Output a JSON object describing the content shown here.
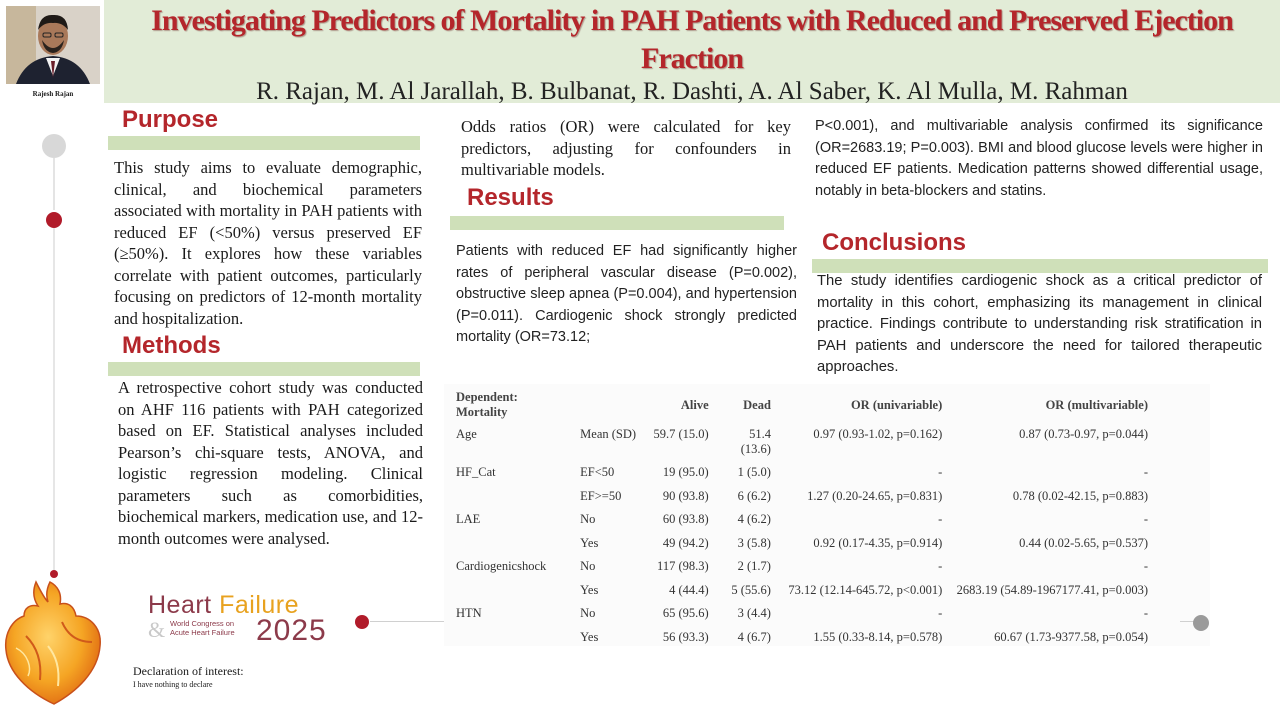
{
  "header": {
    "title": "Investigating Predictors of Mortality in PAH Patients with Reduced and Preserved Ejection Fraction",
    "authors": "R. Rajan, M. Al Jarallah, B. Bulbanat, R. Dashti, A. Al Saber, K. Al Mulla, M. Rahman",
    "photo_caption": "Rajesh Rajan"
  },
  "sections": {
    "purpose": {
      "heading": "Purpose",
      "text": "This study aims to evaluate demographic, clinical, and biochemical parameters associated with mortality in PAH patients with reduced EF (<50%) versus preserved EF (≥50%). It explores how these variables correlate with patient outcomes, particularly focusing on predictors of 12-month mortality and hospitalization."
    },
    "methods": {
      "heading": "Methods",
      "text": "A retrospective cohort study was conducted on AHF 116 patients with PAH categorized based on EF. Statistical analyses included Pearson’s chi-square tests, ANOVA, and logistic regression modeling. Clinical parameters such as comorbidities, biochemical markers, medication use, and 12-month outcomes were analysed.",
      "continued": "Odds ratios (OR) were calculated for key predictors, adjusting for confounders in multivariable models."
    },
    "results": {
      "heading": "Results",
      "text": "Patients with reduced EF had significantly higher rates of peripheral vascular disease (P=0.002), obstructive sleep apnea (P=0.004), and hypertension (P=0.011). Cardiogenic shock strongly predicted mortality (OR=73.12;",
      "continued": "P<0.001), and multivariable analysis confirmed its significance (OR=2683.19; P=0.003). BMI and blood glucose levels were higher in reduced EF patients. Medication patterns showed differential usage, notably in beta-blockers and statins."
    },
    "conclusions": {
      "heading": "Conclusions",
      "text": "The study identifies cardiogenic shock as a critical predictor of mortality in this cohort, emphasizing its management in clinical practice. Findings contribute to understanding risk stratification in PAH patients and underscore the need for tailored therapeutic approaches."
    }
  },
  "table": {
    "headers": {
      "dependent_line1": "Dependent:",
      "dependent_line2": "Mortality",
      "alive": "Alive",
      "dead": "Dead",
      "or_uni": "OR (univariable)",
      "or_multi": "OR (multivariable)"
    },
    "rows": [
      {
        "var": "Age",
        "level": "Mean (SD)",
        "alive": "59.7 (15.0)",
        "dead": "51.4 (13.6)",
        "or_uni": "0.97 (0.93-1.02, p=0.162)",
        "or_multi": "0.87 (0.73-0.97, p=0.044)"
      },
      {
        "var": "HF_Cat",
        "level": "EF<50",
        "alive": "19 (95.0)",
        "dead": "1 (5.0)",
        "or_uni": "-",
        "or_multi": "-"
      },
      {
        "var": "",
        "level": "EF>=50",
        "alive": "90 (93.8)",
        "dead": "6 (6.2)",
        "or_uni": "1.27 (0.20-24.65, p=0.831)",
        "or_multi": "0.78 (0.02-42.15, p=0.883)"
      },
      {
        "var": "LAE",
        "level": "No",
        "alive": "60 (93.8)",
        "dead": "4 (6.2)",
        "or_uni": "-",
        "or_multi": "-"
      },
      {
        "var": "",
        "level": "Yes",
        "alive": "49 (94.2)",
        "dead": "3 (5.8)",
        "or_uni": "0.92 (0.17-4.35, p=0.914)",
        "or_multi": "0.44 (0.02-5.65, p=0.537)"
      },
      {
        "var": "Cardiogenicshock",
        "level": "No",
        "alive": "117 (98.3)",
        "dead": "2 (1.7)",
        "or_uni": "-",
        "or_multi": "-"
      },
      {
        "var": "",
        "level": "Yes",
        "alive": "4 (44.4)",
        "dead": "5 (55.6)",
        "or_uni": "73.12 (12.14-645.72, p<0.001)",
        "or_multi": "2683.19 (54.89-1967177.41, p=0.003)"
      },
      {
        "var": "HTN",
        "level": "No",
        "alive": "65 (95.6)",
        "dead": "3 (4.4)",
        "or_uni": "-",
        "or_multi": "-"
      },
      {
        "var": "",
        "level": "Yes",
        "alive": "56 (93.3)",
        "dead": "4 (6.7)",
        "or_uni": "1.55 (0.33-8.14, p=0.578)",
        "or_multi": "60.67 (1.73-9377.58, p=0.054)"
      }
    ]
  },
  "logo": {
    "word1": "Heart",
    "word2": "Failure",
    "sub_line1": "World Congress on",
    "sub_line2": "Acute Heart Failure",
    "year": "2025"
  },
  "footer": {
    "declaration_label": "Declaration of interest:",
    "declaration_text": "I have nothing to declare"
  },
  "colors": {
    "title_red": "#b4262b",
    "header_green": "#e2ecd7",
    "section_bar_green": "#cfe0b9",
    "timeline_red": "#b11b2a"
  }
}
